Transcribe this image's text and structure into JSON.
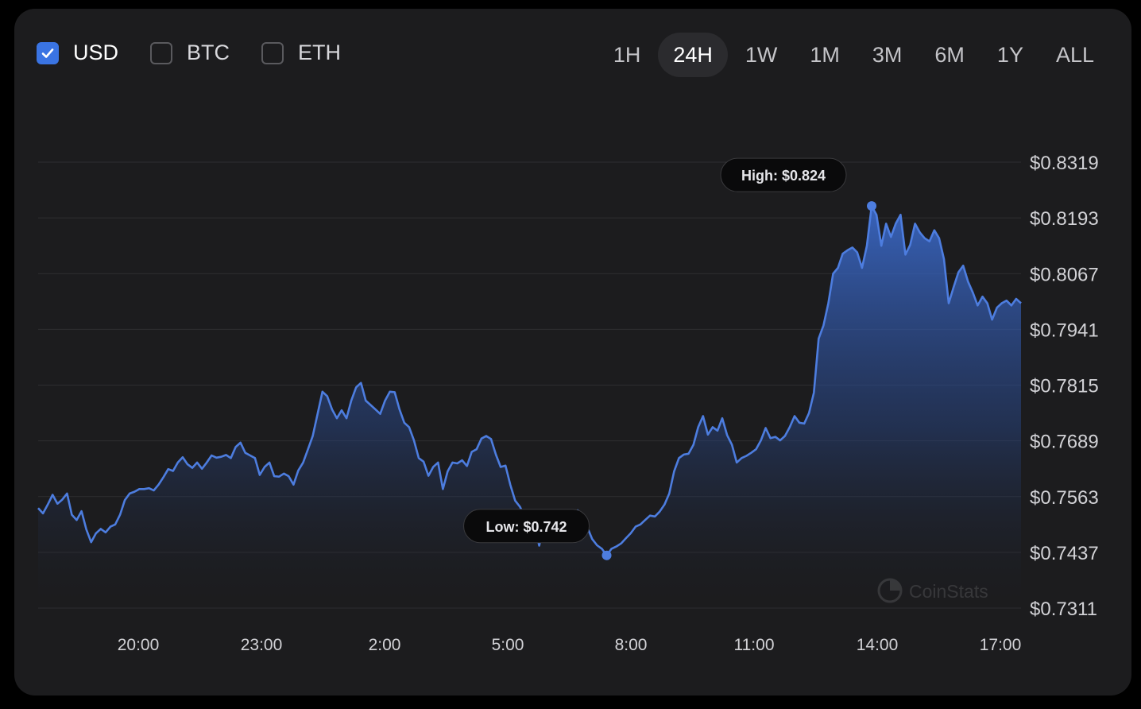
{
  "currency_toggles": [
    {
      "label": "USD",
      "checked": true
    },
    {
      "label": "BTC",
      "checked": false
    },
    {
      "label": "ETH",
      "checked": false
    }
  ],
  "time_ranges": [
    {
      "label": "1H",
      "active": false
    },
    {
      "label": "24H",
      "active": true
    },
    {
      "label": "1W",
      "active": false
    },
    {
      "label": "1M",
      "active": false
    },
    {
      "label": "3M",
      "active": false
    },
    {
      "label": "6M",
      "active": false
    },
    {
      "label": "1Y",
      "active": false
    },
    {
      "label": "ALL",
      "active": false
    }
  ],
  "watermark": "CoinStats",
  "colors": {
    "accent": "#3a74e3",
    "line": "#4d7ddf",
    "background": "#1c1c1e"
  },
  "chart_data": {
    "type": "area",
    "series": [
      {
        "values": [
          0.7537,
          0.7525,
          0.7545,
          0.7567,
          0.7547,
          0.7556,
          0.757,
          0.7522,
          0.751,
          0.753,
          0.7489,
          0.746,
          0.748,
          0.749,
          0.7482,
          0.7495,
          0.75,
          0.7522,
          0.7555,
          0.757,
          0.7574,
          0.758,
          0.758,
          0.7582,
          0.7577,
          0.759,
          0.7607,
          0.7625,
          0.7621,
          0.764,
          0.7652,
          0.7636,
          0.7628,
          0.764,
          0.7626,
          0.764,
          0.7656,
          0.7651,
          0.7653,
          0.7657,
          0.765,
          0.7675,
          0.7685,
          0.7662,
          0.7656,
          0.765,
          0.7612,
          0.763,
          0.764,
          0.7609,
          0.7608,
          0.7615,
          0.7609,
          0.759,
          0.7622,
          0.764,
          0.767,
          0.77,
          0.775,
          0.78,
          0.779,
          0.776,
          0.774,
          0.7758,
          0.774,
          0.778,
          0.781,
          0.782,
          0.778,
          0.777,
          0.776,
          0.775,
          0.778,
          0.78,
          0.7799,
          0.776,
          0.773,
          0.772,
          0.769,
          0.765,
          0.7642,
          0.761,
          0.763,
          0.764,
          0.758,
          0.762,
          0.764,
          0.7638,
          0.7645,
          0.7632,
          0.7664,
          0.767,
          0.7694,
          0.77,
          0.7693,
          0.7658,
          0.763,
          0.7633,
          0.759,
          0.7554,
          0.754,
          0.7517,
          0.752,
          0.75,
          0.7452,
          0.75,
          0.751,
          0.7506,
          0.7509,
          0.752,
          0.75,
          0.7502,
          0.7532,
          0.7508,
          0.7493,
          0.7467,
          0.7453,
          0.7445,
          0.743,
          0.7445,
          0.745,
          0.7457,
          0.7469,
          0.748,
          0.7495,
          0.75,
          0.751,
          0.752,
          0.7518,
          0.7529,
          0.7545,
          0.757,
          0.762,
          0.765,
          0.7658,
          0.766,
          0.768,
          0.772,
          0.7745,
          0.7703,
          0.772,
          0.7712,
          0.774,
          0.7702,
          0.768,
          0.764,
          0.765,
          0.7655,
          0.7662,
          0.767,
          0.769,
          0.7718,
          0.7695,
          0.7698,
          0.769,
          0.77,
          0.772,
          0.7745,
          0.773,
          0.7728,
          0.7752,
          0.7798,
          0.792,
          0.795,
          0.8,
          0.8067,
          0.808,
          0.8112,
          0.812,
          0.8126,
          0.8115,
          0.808,
          0.813,
          0.822,
          0.82,
          0.813,
          0.818,
          0.815,
          0.818,
          0.82,
          0.811,
          0.8132,
          0.818,
          0.816,
          0.8147,
          0.814,
          0.8165,
          0.8147,
          0.81,
          0.8,
          0.8036,
          0.807,
          0.8085,
          0.8049,
          0.8024,
          0.7995,
          0.8015,
          0.8,
          0.7963,
          0.799,
          0.8,
          0.8006,
          0.7995,
          0.801,
          0.8
        ],
        "color": "#4d7ddf"
      }
    ],
    "x_ticks": [
      "20:00",
      "23:00",
      "2:00",
      "5:00",
      "8:00",
      "11:00",
      "14:00",
      "17:00"
    ],
    "y_ticks": [
      "$0.8319",
      "$0.8193",
      "$0.8067",
      "$0.7941",
      "$0.7815",
      "$0.7689",
      "$0.7563",
      "$0.7437",
      "$0.7311"
    ],
    "ylim": [
      0.7311,
      0.8319
    ],
    "high": {
      "label": "High: $0.824",
      "value": 0.824
    },
    "low": {
      "label": "Low: $0.742",
      "value": 0.742
    },
    "grid": true
  }
}
